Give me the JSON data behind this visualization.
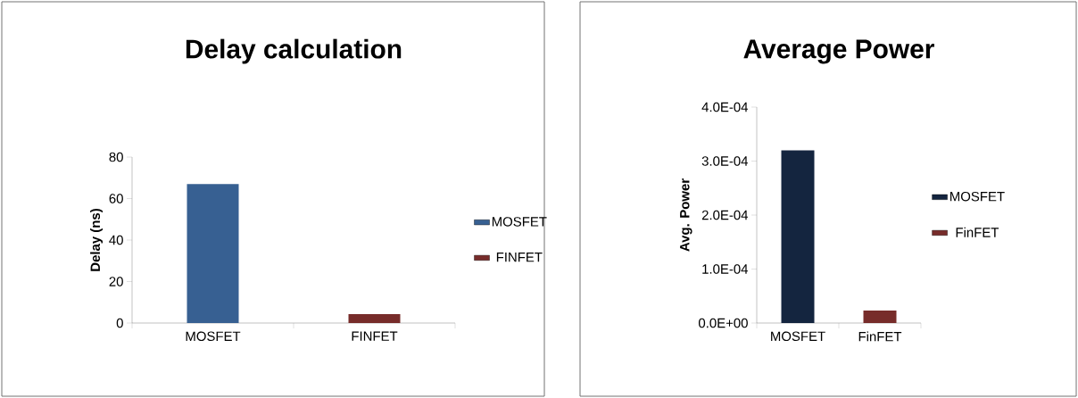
{
  "chart_data": [
    {
      "type": "bar",
      "title": "Delay calculation",
      "ylabel": "Delay  (ns)",
      "categories": [
        "MOSFET",
        "FINFET"
      ],
      "series": [
        {
          "name": "MOSFET",
          "color": "#376092",
          "values": [
            67,
            null
          ]
        },
        {
          "name": "FINFET",
          "color": "#772c2a",
          "values": [
            null,
            4.3
          ]
        }
      ],
      "ylim": [
        0,
        80
      ],
      "yticks": [
        0,
        20,
        40,
        60,
        80
      ],
      "legend": "right",
      "grid": false
    },
    {
      "type": "bar",
      "title": "Average Power",
      "ylabel": "Avg. Power",
      "categories": [
        "MOSFET",
        "FinFET"
      ],
      "series": [
        {
          "name": "MOSFET",
          "color": "#14253f",
          "values": [
            0.00032,
            null
          ]
        },
        {
          "name": "FinFET",
          "color": "#772c2a",
          "values": [
            null,
            2.3e-05
          ]
        }
      ],
      "ylim": [
        0,
        0.0004
      ],
      "yticks": [
        {
          "value": 0,
          "label": "0.0E+00"
        },
        {
          "value": 0.0001,
          "label": "1.0E-04"
        },
        {
          "value": 0.0002,
          "label": "2.0E-04"
        },
        {
          "value": 0.0003,
          "label": "3.0E-04"
        },
        {
          "value": 0.0004,
          "label": "4.0E-04"
        }
      ],
      "legend": "right",
      "grid": false
    }
  ]
}
